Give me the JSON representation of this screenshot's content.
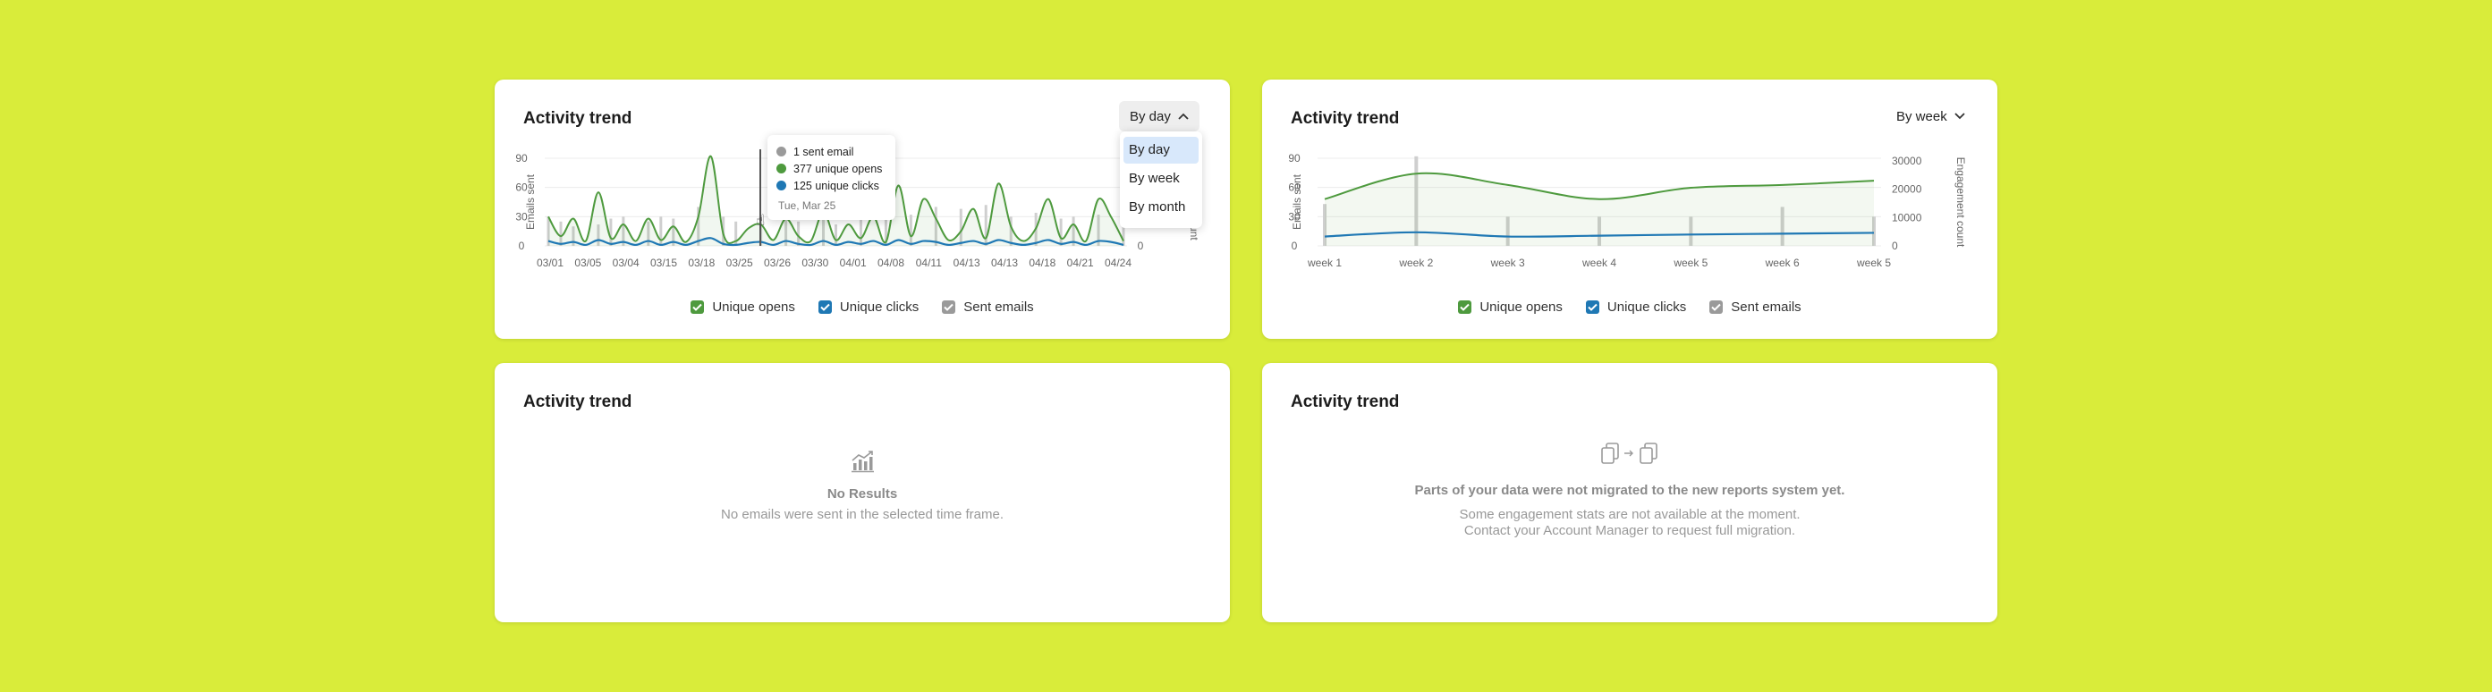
{
  "colors": {
    "background": "#d9ec3a",
    "opens": "#4e9a3e",
    "clicks": "#1f78b4",
    "sent": "#9a9a9a",
    "selected": "#d8e8fb"
  },
  "card1": {
    "title": "Activity trend",
    "period_label": "By day",
    "dropdown_options": [
      "By day",
      "By week",
      "By month"
    ],
    "tooltip": {
      "sent": "1 sent email",
      "opens": "377 unique opens",
      "clicks": "125 unique clicks",
      "date": "Tue, Mar 25"
    },
    "y_title": "Emails sent",
    "y2_title": "count",
    "y2_tick": "0",
    "legend": {
      "opens": "Unique opens",
      "clicks": "Unique clicks",
      "sent": "Sent emails"
    }
  },
  "card2": {
    "title": "Activity trend",
    "period_label": "By week",
    "y_title": "Emails sent",
    "y2_title": "Engagement count",
    "legend": {
      "opens": "Unique opens",
      "clicks": "Unique clicks",
      "sent": "Sent emails"
    }
  },
  "card3": {
    "title": "Activity trend",
    "icon": "chart-icon",
    "empty_title": "No Results",
    "empty_sub": "No emails were sent in the selected time frame."
  },
  "card4": {
    "title": "Activity trend",
    "icon": "migration-icon",
    "empty_title": "Parts of your data were not migrated to the new reports system yet.",
    "empty_sub1": "Some engagement stats are not available at the moment.",
    "empty_sub2": "Contact your Account Manager to request full migration."
  },
  "chart_data": [
    {
      "type": "line",
      "title": "Activity trend",
      "ylabel": "Emails sent",
      "y2label": "count",
      "ylim": [
        0,
        90
      ],
      "yticks": [
        0,
        30,
        60,
        90
      ],
      "x_tick_labels": [
        "03/01",
        "03/05",
        "03/04",
        "03/15",
        "03/18",
        "03/25",
        "03/26",
        "03/30",
        "04/01",
        "04/08",
        "04/11",
        "04/13",
        "04/13",
        "04/18",
        "04/21",
        "04/24"
      ],
      "series": [
        {
          "name": "Unique opens",
          "values": [
            30,
            10,
            28,
            5,
            55,
            8,
            22,
            5,
            28,
            6,
            20,
            4,
            30,
            92,
            12,
            5,
            18,
            22,
            6,
            28,
            10,
            5,
            35,
            6,
            22,
            8,
            30,
            4,
            62,
            10,
            48,
            28,
            6,
            15,
            38,
            8,
            64,
            20,
            5,
            18,
            48,
            8,
            22,
            5,
            48,
            30,
            5
          ]
        },
        {
          "name": "Unique clicks",
          "values": [
            5,
            2,
            4,
            1,
            6,
            2,
            4,
            1,
            5,
            1,
            4,
            1,
            5,
            8,
            2,
            1,
            3,
            4,
            1,
            5,
            2,
            1,
            5,
            1,
            4,
            2,
            5,
            1,
            6,
            2,
            5,
            4,
            1,
            3,
            5,
            2,
            6,
            3,
            1,
            3,
            6,
            2,
            4,
            1,
            5,
            4,
            1
          ]
        },
        {
          "name": "Sent emails",
          "values": [
            30,
            25,
            20,
            0,
            22,
            28,
            30,
            0,
            25,
            30,
            28,
            0,
            40,
            0,
            30,
            25,
            0,
            28,
            0,
            40,
            25,
            0,
            30,
            22,
            0,
            30,
            0,
            28,
            0,
            32,
            0,
            40,
            0,
            38,
            0,
            42,
            0,
            30,
            0,
            34,
            0,
            28,
            30,
            0,
            32,
            0,
            20
          ]
        }
      ]
    },
    {
      "type": "line",
      "title": "Activity trend",
      "ylabel": "Emails sent",
      "y2label": "Engagement count",
      "ylim": [
        0,
        90
      ],
      "yticks": [
        0,
        30,
        60,
        90
      ],
      "y2lim": [
        0,
        30000
      ],
      "y2ticks": [
        0,
        10000,
        20000,
        30000
      ],
      "categories": [
        "week 1",
        "week 2",
        "week 3",
        "week 4",
        "week 5",
        "week 6",
        "week 5"
      ],
      "series": [
        {
          "name": "Unique opens",
          "values": [
            16500,
            25500,
            21500,
            16500,
            20500,
            21500,
            23000
          ]
        },
        {
          "name": "Unique clicks",
          "values": [
            3300,
            4800,
            3300,
            3600,
            4000,
            4300,
            4600
          ]
        },
        {
          "name": "Sent emails",
          "values": [
            43,
            92,
            30,
            30,
            30,
            40,
            30
          ]
        }
      ]
    }
  ]
}
